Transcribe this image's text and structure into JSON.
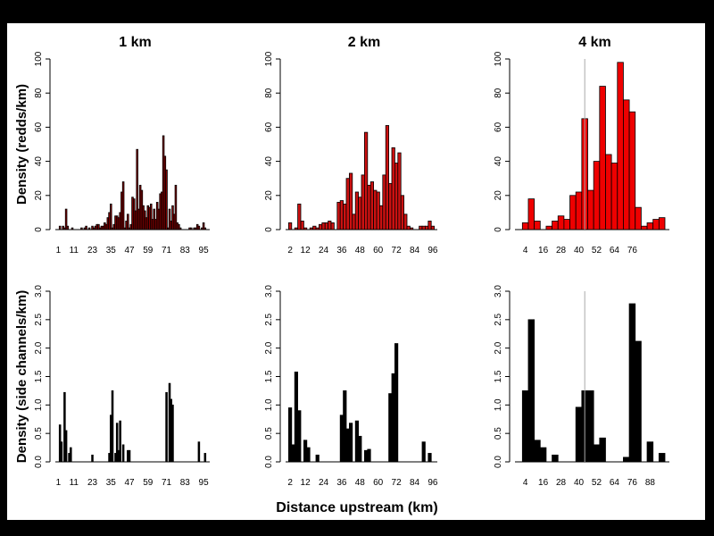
{
  "chart_data": [
    {
      "type": "bar",
      "title": "1 km",
      "ylabel": "Density (redds/km)",
      "ylim": [
        0,
        100
      ],
      "yticks": [
        "0",
        "20",
        "40",
        "60",
        "80",
        "100"
      ],
      "xtick_labels": [
        "1",
        "11",
        "23",
        "35",
        "47",
        "59",
        "71",
        "83",
        "95"
      ],
      "bar_fill": "#8b0000",
      "x": [
        1,
        2,
        3,
        4,
        5,
        6,
        7,
        8,
        9,
        10,
        11,
        12,
        13,
        14,
        15,
        16,
        17,
        18,
        19,
        20,
        21,
        22,
        23,
        24,
        25,
        26,
        27,
        28,
        29,
        30,
        31,
        32,
        33,
        34,
        35,
        36,
        37,
        38,
        39,
        40,
        41,
        42,
        43,
        44,
        45,
        46,
        47,
        48,
        49,
        50,
        51,
        52,
        53,
        54,
        55,
        56,
        57,
        58,
        59,
        60,
        61,
        62,
        63,
        64,
        65,
        66,
        67,
        68,
        69,
        70,
        71,
        72,
        73,
        74,
        75,
        76,
        77,
        78,
        79,
        80,
        81,
        82,
        83,
        84,
        85,
        86,
        87,
        88,
        89,
        90,
        91,
        92,
        93,
        94,
        95,
        96,
        97
      ],
      "values": [
        0,
        2,
        0,
        2,
        1,
        12,
        2,
        0,
        0,
        1,
        0,
        0,
        0,
        0,
        0,
        1,
        0,
        1,
        2,
        0,
        1,
        0,
        2,
        1,
        2,
        3,
        3,
        1,
        2,
        2,
        4,
        3,
        7,
        10,
        15,
        1,
        3,
        8,
        8,
        7,
        10,
        22,
        28,
        1,
        5,
        9,
        1,
        3,
        19,
        18,
        11,
        47,
        12,
        26,
        23,
        14,
        11,
        7,
        14,
        13,
        15,
        6,
        12,
        6,
        16,
        12,
        21,
        22,
        55,
        43,
        35,
        1,
        12,
        5,
        14,
        9,
        26,
        4,
        3,
        1,
        0,
        0,
        0,
        0,
        0,
        1,
        1,
        0,
        1,
        1,
        3,
        2,
        0,
        1,
        4,
        1,
        0
      ]
    },
    {
      "type": "bar",
      "title": "2 km",
      "ylim": [
        0,
        100
      ],
      "yticks": [
        "0",
        "20",
        "40",
        "60",
        "80",
        "100"
      ],
      "xtick_labels": [
        "2",
        "12",
        "24",
        "36",
        "48",
        "60",
        "72",
        "84",
        "96"
      ],
      "bar_fill": "#cc1111",
      "x": [
        2,
        4,
        6,
        8,
        10,
        12,
        14,
        16,
        18,
        20,
        22,
        24,
        26,
        28,
        30,
        32,
        34,
        36,
        38,
        40,
        42,
        44,
        46,
        48,
        50,
        52,
        54,
        56,
        58,
        60,
        62,
        64,
        66,
        68,
        70,
        72,
        74,
        76,
        78,
        80,
        82,
        84,
        86,
        88,
        90,
        92,
        94,
        96
      ],
      "values": [
        4,
        0,
        1,
        15,
        5,
        1,
        0,
        1,
        2,
        1,
        3,
        4,
        4,
        5,
        4,
        0,
        16,
        17,
        15,
        30,
        33,
        9,
        22,
        19,
        32,
        57,
        26,
        28,
        23,
        22,
        14,
        32,
        61,
        27,
        48,
        39,
        45,
        20,
        9,
        2,
        1,
        0,
        0,
        2,
        2,
        2,
        5,
        2
      ]
    },
    {
      "type": "bar",
      "title": "4 km",
      "ylim": [
        0,
        100
      ],
      "yticks": [
        "0",
        "20",
        "40",
        "60",
        "80",
        "100"
      ],
      "xtick_labels": [
        "4",
        "16",
        "28",
        "40",
        "52",
        "64",
        "76"
      ],
      "bar_fill": "#ee0000",
      "x": [
        4,
        8,
        12,
        16,
        20,
        24,
        28,
        32,
        36,
        40,
        44,
        48,
        52,
        56,
        60,
        64,
        68,
        72,
        76,
        80,
        84,
        88,
        92,
        96
      ],
      "values": [
        4,
        18,
        5,
        0,
        2,
        5,
        8,
        6,
        20,
        22,
        65,
        23,
        40,
        84,
        44,
        39,
        98,
        76,
        69,
        13,
        2,
        4,
        6,
        7
      ],
      "reference_line_x": 44
    },
    {
      "type": "bar",
      "ylabel": "Density (side channels/km)",
      "ylim": [
        0,
        3
      ],
      "yticks": [
        "0.0",
        "0.5",
        "1.0",
        "1.5",
        "2.0",
        "2.5",
        "3.0"
      ],
      "xtick_labels": [
        "1",
        "11",
        "23",
        "35",
        "47",
        "59",
        "71",
        "83",
        "95"
      ],
      "bar_fill": "#000000",
      "x": [
        1,
        2,
        3,
        4,
        5,
        6,
        7,
        8,
        9,
        10,
        11,
        12,
        13,
        14,
        15,
        16,
        17,
        18,
        19,
        20,
        21,
        22,
        23,
        24,
        25,
        26,
        27,
        28,
        29,
        30,
        31,
        32,
        33,
        34,
        35,
        36,
        37,
        38,
        39,
        40,
        41,
        42,
        43,
        44,
        45,
        46,
        47,
        48,
        49,
        50,
        51,
        52,
        53,
        54,
        55,
        56,
        57,
        58,
        59,
        60,
        61,
        62,
        63,
        64,
        65,
        66,
        67,
        68,
        69,
        70,
        71,
        72,
        73,
        74,
        75,
        76,
        77,
        78,
        79,
        80,
        81,
        82,
        83,
        84,
        85,
        86,
        87,
        88,
        89,
        90,
        91,
        92,
        93,
        94,
        95,
        96,
        97
      ],
      "values": [
        0,
        0.65,
        0.35,
        0,
        1.22,
        0.55,
        0,
        0.15,
        0.25,
        0,
        0,
        0,
        0,
        0,
        0,
        0,
        0,
        0,
        0,
        0,
        0,
        0,
        0.12,
        0,
        0,
        0,
        0,
        0,
        0,
        0,
        0,
        0,
        0,
        0.15,
        0.82,
        1.25,
        0,
        0.15,
        0.68,
        0.2,
        0.72,
        0,
        0.3,
        0,
        0,
        0.2,
        0.2,
        0,
        0,
        0,
        0,
        0,
        0,
        0,
        0,
        0,
        0,
        0,
        0,
        0,
        0,
        0,
        0,
        0,
        0,
        0,
        0,
        0,
        0,
        0,
        1.22,
        0,
        1.38,
        1.1,
        1.0,
        0,
        0,
        0,
        0,
        0,
        0,
        0,
        0,
        0,
        0,
        0,
        0,
        0,
        0,
        0,
        0,
        0.35,
        0,
        0,
        0,
        0.15,
        0
      ]
    },
    {
      "type": "bar",
      "ylim": [
        0,
        3
      ],
      "yticks": [
        "0.0",
        "0.5",
        "1.0",
        "1.5",
        "2.0",
        "2.5",
        "3.0"
      ],
      "xtick_labels": [
        "2",
        "12",
        "24",
        "36",
        "48",
        "60",
        "72",
        "84",
        "96"
      ],
      "bar_fill": "#000000",
      "x": [
        2,
        4,
        6,
        8,
        10,
        12,
        14,
        16,
        18,
        20,
        22,
        24,
        26,
        28,
        30,
        32,
        34,
        36,
        38,
        40,
        42,
        44,
        46,
        48,
        50,
        52,
        54,
        56,
        58,
        60,
        62,
        64,
        66,
        68,
        70,
        72,
        74,
        76,
        78,
        80,
        82,
        84,
        86,
        88,
        90,
        92,
        94,
        96
      ],
      "values": [
        0.95,
        0.3,
        1.58,
        0.9,
        0,
        0.38,
        0.25,
        0,
        0,
        0.12,
        0,
        0,
        0,
        0,
        0,
        0,
        0,
        0.82,
        1.25,
        0.58,
        0.68,
        0,
        0.72,
        0.45,
        0,
        0.2,
        0.22,
        0,
        0,
        0,
        0,
        0,
        0,
        1.2,
        1.55,
        2.08,
        0,
        0,
        0,
        0,
        0,
        0,
        0,
        0,
        0.35,
        0,
        0.15,
        0
      ]
    },
    {
      "type": "bar",
      "ylim": [
        0,
        3
      ],
      "yticks": [
        "0.0",
        "0.5",
        "1.0",
        "1.5",
        "2.0",
        "2.5",
        "3.0"
      ],
      "xtick_labels": [
        "4",
        "16",
        "28",
        "40",
        "52",
        "64",
        "76",
        "88"
      ],
      "bar_fill": "#000000",
      "x": [
        4,
        8,
        12,
        16,
        20,
        24,
        28,
        32,
        36,
        40,
        44,
        48,
        52,
        56,
        60,
        64,
        68,
        72,
        76,
        80,
        84,
        88,
        92,
        96
      ],
      "values": [
        1.25,
        2.5,
        0.38,
        0.25,
        0,
        0.12,
        0,
        0,
        0,
        0.96,
        1.25,
        1.25,
        0.3,
        0.42,
        0,
        0,
        0,
        0.08,
        2.78,
        2.12,
        0,
        0.35,
        0,
        0.15
      ],
      "reference_line_x": 44
    }
  ],
  "figure": {
    "xlabel": "Distance upstream (km)",
    "reference_line_color": "#aaaaaa"
  }
}
